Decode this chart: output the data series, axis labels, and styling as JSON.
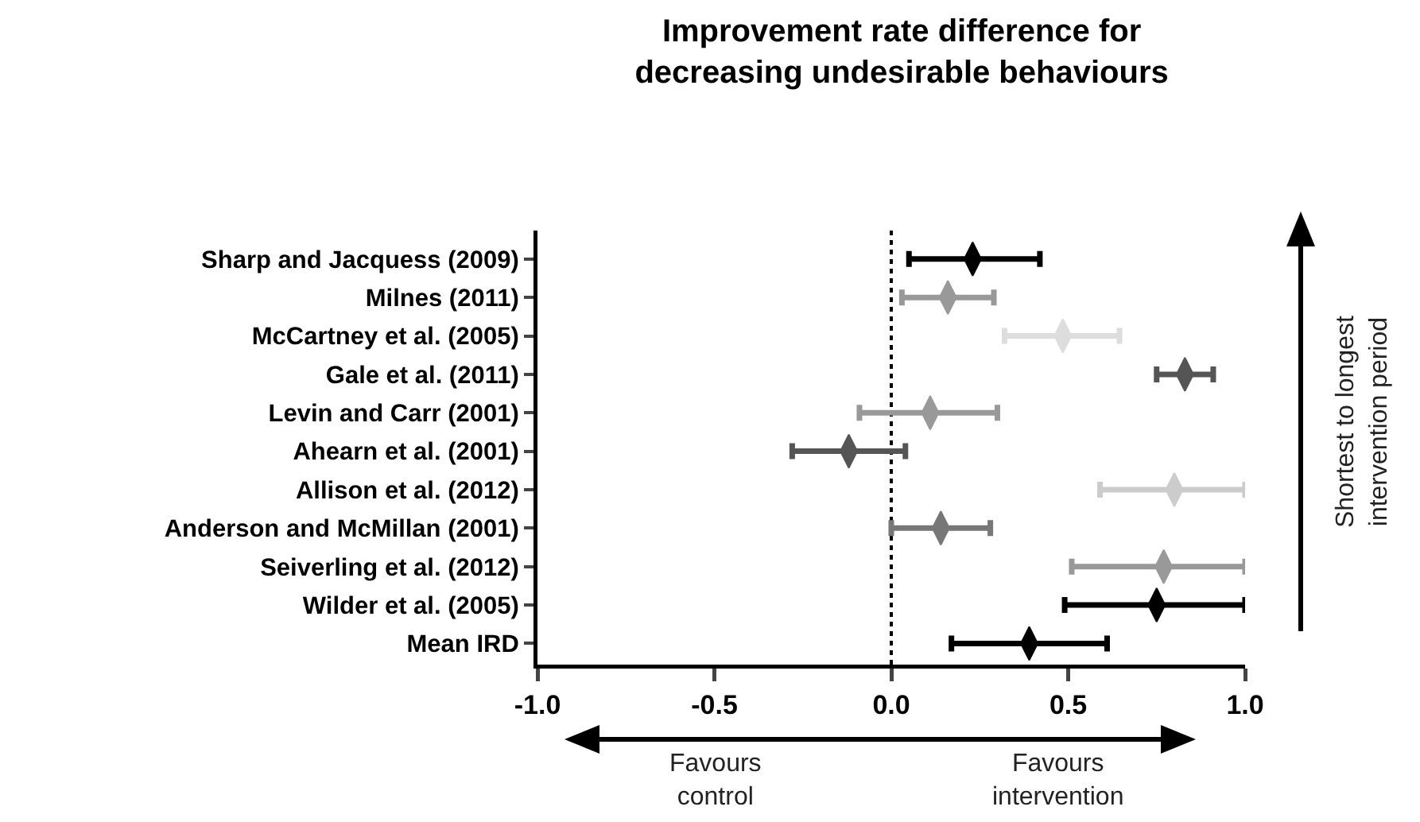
{
  "chart_data": {
    "type": "scatter",
    "title": "Improvement rate difference for\ndecreasing undesirable behaviours",
    "orientation": "horizontal",
    "categories": [
      "Sharp and Jacquess (2009)",
      "Milnes (2011)",
      "McCartney et al. (2005)",
      "Gale et al. (2011)",
      "Levin and Carr (2001)",
      "Ahearn et al. (2001)",
      "Allison et al. (2012)",
      "Anderson and McMillan (2001)",
      "Seiverling et al. (2012)",
      "Wilder et al. (2005)",
      "Mean IRD"
    ],
    "values": [
      0.23,
      0.16,
      0.485,
      0.83,
      0.11,
      -0.12,
      0.8,
      0.14,
      0.77,
      0.75,
      0.39
    ],
    "errors": [
      [
        0.05,
        0.42
      ],
      [
        0.03,
        0.29
      ],
      [
        0.32,
        0.645
      ],
      [
        0.75,
        0.91
      ],
      [
        -0.09,
        0.3
      ],
      [
        -0.28,
        0.04
      ],
      [
        0.59,
        1.0
      ],
      [
        0.0,
        0.28
      ],
      [
        0.51,
        1.0
      ],
      [
        0.49,
        1.0
      ],
      [
        0.17,
        0.61
      ]
    ],
    "colors": [
      "#000000",
      "#999999",
      "#dddddd",
      "#555555",
      "#999999",
      "#555555",
      "#cccccc",
      "#777777",
      "#999999",
      "#000000",
      "#000000"
    ],
    "xlim": [
      -1.0,
      1.0
    ],
    "xticks": [
      {
        "value": -1,
        "label": "-1.0"
      },
      -0.5,
      {
        "value": 0,
        "label": "0.0"
      },
      0.5,
      {
        "value": 1,
        "label": "1.0"
      }
    ],
    "ref_lines": [
      {
        "axis": "x",
        "value": 0,
        "line_style": "dotted",
        "color": "#000000"
      }
    ],
    "annotations": [
      "Favours\ncontrol",
      "Favours\nintervention",
      "Shortest to longest\nintervention period"
    ],
    "marker": "diamond",
    "grid": false
  }
}
